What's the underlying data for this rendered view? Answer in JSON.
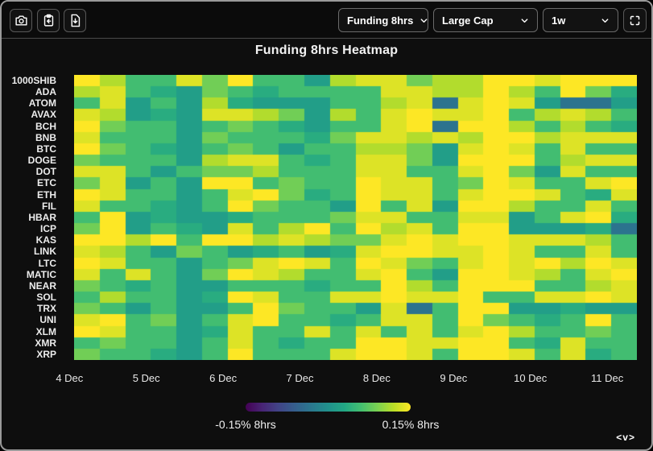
{
  "toolbar": {
    "icons": [
      "camera-icon",
      "clipboard-icon",
      "file-download-icon",
      "fullscreen-icon"
    ],
    "dropdowns": [
      {
        "label": "Funding 8hrs"
      },
      {
        "label": "Large Cap"
      },
      {
        "label": "1w"
      }
    ]
  },
  "chart": {
    "title": "Funding 8hrs Heatmap"
  },
  "colorbar": {
    "left_label": "-0.15% 8hrs",
    "right_label": "0.15% 8hrs"
  },
  "watermark": "<v>",
  "chart_data": {
    "type": "heatmap",
    "title": "Funding 8hrs Heatmap",
    "unit": "% per 8hrs",
    "colormap": "viridis",
    "scale_min": -0.15,
    "scale_max": 0.15,
    "rows": [
      "1000SHIB",
      "ADA",
      "ATOM",
      "AVAX",
      "BCH",
      "BNB",
      "BTC",
      "DOGE",
      "DOT",
      "ETC",
      "ETH",
      "FIL",
      "HBAR",
      "ICP",
      "KAS",
      "LINK",
      "LTC",
      "MATIC",
      "NEAR",
      "SOL",
      "TRX",
      "UNI",
      "XLM",
      "XMR",
      "XRP"
    ],
    "x_ticks": [
      "4 Dec",
      "5 Dec",
      "6 Dec",
      "7 Dec",
      "8 Dec",
      "9 Dec",
      "10 Dec",
      "11 Dec"
    ],
    "cells_per_day": 3,
    "values": [
      [
        0.15,
        0.115,
        0.058,
        0.058,
        0.135,
        0.085,
        0.15,
        0.058,
        0.058,
        0.018,
        0.115,
        0.135,
        0.135,
        0.085,
        0.115,
        0.115,
        0.15,
        0.15,
        0.135,
        0.15,
        0.15,
        0.15
      ],
      [
        0.115,
        0.135,
        0.058,
        0.036,
        0.018,
        0.085,
        0.058,
        0.036,
        0.058,
        0.058,
        0.058,
        0.058,
        0.135,
        0.135,
        0.115,
        0.115,
        0.15,
        0.115,
        0.058,
        0.15,
        0.085,
        0.036
      ],
      [
        0.058,
        0.135,
        0.018,
        0.058,
        0.018,
        0.115,
        0.036,
        0.018,
        0.018,
        0.018,
        0.058,
        0.058,
        0.115,
        0.135,
        -0.036,
        0.135,
        0.15,
        0.135,
        0.018,
        -0.036,
        -0.036,
        0.018
      ],
      [
        0.135,
        0.115,
        0.018,
        0.036,
        0.018,
        0.135,
        0.135,
        0.115,
        0.085,
        0.018,
        0.115,
        0.058,
        0.135,
        0.15,
        0.135,
        0.135,
        0.15,
        0.058,
        0.115,
        0.135,
        0.115,
        0.058
      ],
      [
        0.15,
        0.085,
        0.058,
        0.058,
        0.018,
        0.058,
        0.085,
        0.058,
        0.036,
        0.018,
        0.058,
        0.058,
        0.135,
        0.15,
        -0.036,
        0.15,
        0.15,
        0.115,
        0.058,
        0.115,
        0.058,
        0.036
      ],
      [
        0.135,
        0.058,
        0.058,
        0.058,
        0.018,
        0.085,
        0.058,
        0.058,
        0.058,
        0.036,
        0.085,
        0.135,
        0.135,
        0.115,
        0.135,
        0.115,
        0.15,
        0.15,
        0.115,
        0.135,
        0.135,
        0.135
      ],
      [
        0.15,
        0.085,
        0.058,
        0.036,
        0.018,
        0.058,
        0.085,
        0.058,
        0.018,
        0.058,
        0.058,
        0.115,
        0.115,
        0.085,
        0.018,
        0.135,
        0.15,
        0.135,
        0.058,
        0.135,
        0.058,
        0.058
      ],
      [
        0.085,
        0.058,
        0.058,
        0.058,
        0.018,
        0.115,
        0.135,
        0.135,
        0.058,
        0.036,
        0.058,
        0.135,
        0.135,
        0.085,
        0.018,
        0.15,
        0.15,
        0.15,
        0.058,
        0.115,
        0.135,
        0.135
      ],
      [
        0.135,
        0.135,
        0.058,
        0.018,
        0.058,
        0.085,
        0.085,
        0.115,
        0.058,
        0.058,
        0.058,
        0.135,
        0.135,
        0.058,
        0.058,
        0.135,
        0.15,
        0.085,
        0.018,
        0.135,
        0.058,
        0.058
      ],
      [
        0.085,
        0.135,
        0.018,
        0.058,
        0.018,
        0.15,
        0.15,
        0.058,
        0.085,
        0.058,
        0.058,
        0.15,
        0.135,
        0.135,
        0.058,
        0.085,
        0.15,
        0.135,
        0.058,
        0.058,
        0.135,
        0.15
      ],
      [
        0.15,
        0.135,
        0.058,
        0.058,
        0.018,
        0.058,
        0.135,
        0.15,
        0.085,
        0.036,
        0.058,
        0.15,
        0.135,
        0.135,
        0.058,
        0.135,
        0.15,
        0.15,
        0.135,
        0.058,
        0.036,
        0.135
      ],
      [
        0.135,
        0.058,
        0.058,
        0.036,
        0.018,
        0.058,
        0.15,
        0.085,
        0.058,
        0.058,
        0.018,
        0.15,
        0.058,
        0.135,
        0.018,
        0.15,
        0.15,
        0.115,
        0.058,
        0.058,
        0.135,
        0.058
      ],
      [
        0.058,
        0.15,
        0.018,
        0.036,
        0.018,
        0.018,
        0.036,
        0.058,
        0.058,
        0.058,
        0.085,
        0.135,
        0.135,
        0.058,
        0.058,
        0.135,
        0.135,
        0.018,
        0.058,
        0.135,
        0.15,
        0.036
      ],
      [
        0.085,
        0.15,
        0.018,
        0.058,
        0.036,
        0.018,
        0.135,
        0.058,
        0.115,
        0.15,
        0.058,
        0.15,
        0.115,
        0.135,
        0.058,
        0.15,
        0.15,
        0.018,
        0.018,
        0.018,
        0.036,
        -0.036
      ],
      [
        0.15,
        0.15,
        0.115,
        0.15,
        0.058,
        0.15,
        0.15,
        0.115,
        0.135,
        0.115,
        0.085,
        0.085,
        0.135,
        0.15,
        0.135,
        0.15,
        0.15,
        0.135,
        0.135,
        0.135,
        0.115,
        0.058
      ],
      [
        0.135,
        0.115,
        0.058,
        0.018,
        0.085,
        0.058,
        0.018,
        0.036,
        0.058,
        0.018,
        0.036,
        0.135,
        0.15,
        0.15,
        0.135,
        0.135,
        0.15,
        0.135,
        0.058,
        0.058,
        0.135,
        0.058
      ],
      [
        0.15,
        0.135,
        0.058,
        0.058,
        0.018,
        0.058,
        0.085,
        0.135,
        0.15,
        0.135,
        0.058,
        0.15,
        0.135,
        0.085,
        0.058,
        0.135,
        0.15,
        0.135,
        0.15,
        0.115,
        0.15,
        0.135
      ],
      [
        0.135,
        0.058,
        0.135,
        0.058,
        0.018,
        0.085,
        0.15,
        0.135,
        0.115,
        0.058,
        0.058,
        0.135,
        0.15,
        0.058,
        0.018,
        0.15,
        0.15,
        0.135,
        0.115,
        0.058,
        0.135,
        0.15
      ],
      [
        0.085,
        0.058,
        0.036,
        0.058,
        0.018,
        0.018,
        0.058,
        0.058,
        0.058,
        0.036,
        0.058,
        0.058,
        0.15,
        0.115,
        0.058,
        0.15,
        0.15,
        0.15,
        0.058,
        0.058,
        0.115,
        0.135
      ],
      [
        0.058,
        0.115,
        0.058,
        0.058,
        0.018,
        0.036,
        0.15,
        0.135,
        0.058,
        0.058,
        0.135,
        0.135,
        0.15,
        0.135,
        0.135,
        0.15,
        0.058,
        0.058,
        0.135,
        0.135,
        0.15,
        0.135
      ],
      [
        0.085,
        0.058,
        0.018,
        0.058,
        0.018,
        0.018,
        0.058,
        0.15,
        0.085,
        0.058,
        0.058,
        0.018,
        0.135,
        -0.036,
        0.058,
        0.15,
        0.15,
        0.018,
        0.018,
        0.036,
        0.018,
        0.018
      ],
      [
        0.135,
        0.15,
        0.058,
        0.085,
        0.018,
        0.058,
        0.135,
        0.15,
        0.058,
        0.058,
        0.036,
        0.058,
        0.135,
        0.135,
        0.058,
        0.15,
        0.085,
        0.058,
        0.036,
        0.058,
        0.15,
        0.058
      ],
      [
        0.15,
        0.135,
        0.058,
        0.058,
        0.018,
        0.036,
        0.135,
        0.058,
        0.058,
        0.135,
        0.058,
        0.135,
        0.058,
        0.135,
        0.058,
        0.135,
        0.15,
        0.115,
        0.058,
        0.058,
        0.085,
        0.058
      ],
      [
        0.058,
        0.085,
        0.058,
        0.058,
        0.018,
        0.058,
        0.135,
        0.058,
        0.036,
        0.058,
        0.058,
        0.15,
        0.15,
        0.135,
        0.135,
        0.15,
        0.15,
        0.058,
        0.036,
        0.135,
        0.058,
        0.058
      ],
      [
        0.085,
        0.058,
        0.058,
        0.036,
        0.018,
        0.058,
        0.15,
        0.058,
        0.058,
        0.058,
        0.135,
        0.15,
        0.15,
        0.135,
        0.058,
        0.15,
        0.15,
        0.135,
        0.058,
        0.135,
        0.036,
        0.058
      ]
    ]
  }
}
